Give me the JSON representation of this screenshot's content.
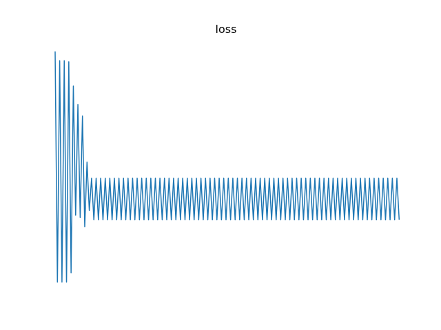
{
  "chart_data": {
    "type": "line",
    "title": "loss",
    "axes_visible": false,
    "grid": false,
    "legend": "none",
    "xlim": [
      0,
      150
    ],
    "ylim": [
      -0.05,
      1.05
    ],
    "series": [
      {
        "color": "#1f77b4",
        "head_values": [
          1.0,
          0.0,
          0.96,
          0.0,
          0.96,
          0.0,
          0.955,
          0.04,
          0.85,
          0.29,
          0.77,
          0.28,
          0.72,
          0.24,
          0.52,
          0.31,
          0.45
        ],
        "steady_values": [
          0.27,
          0.45
        ],
        "steady_until_index": 151
      }
    ]
  }
}
